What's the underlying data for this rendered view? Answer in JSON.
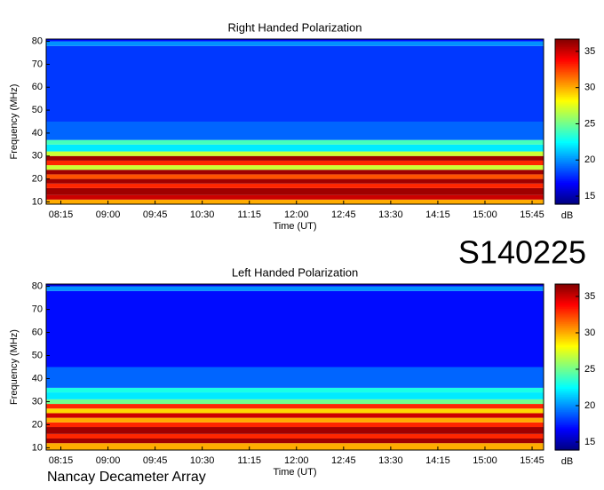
{
  "chart_data": [
    {
      "type": "heatmap",
      "title": "Right Handed Polarization",
      "xlabel": "Time (UT)",
      "ylabel": "Frequency (MHz)",
      "xlim": [
        481,
        956
      ],
      "xticks": [
        {
          "value": 495,
          "label": "08:15"
        },
        {
          "value": 540,
          "label": "09:00"
        },
        {
          "value": 585,
          "label": "09:45"
        },
        {
          "value": 630,
          "label": "10:30"
        },
        {
          "value": 675,
          "label": "11:15"
        },
        {
          "value": 720,
          "label": "12:00"
        },
        {
          "value": 765,
          "label": "12:45"
        },
        {
          "value": 810,
          "label": "13:30"
        },
        {
          "value": 855,
          "label": "14:15"
        },
        {
          "value": 900,
          "label": "15:00"
        },
        {
          "value": 945,
          "label": "15:45"
        }
      ],
      "ylim": [
        9,
        81
      ],
      "yticks": [
        10,
        20,
        30,
        40,
        50,
        60,
        70,
        80
      ],
      "y_bins": [
        9,
        11,
        13,
        16,
        18,
        20,
        22,
        24,
        26,
        28,
        30,
        32,
        35,
        37,
        45,
        78,
        80,
        81
      ],
      "values": [
        30,
        35,
        36,
        33,
        36,
        32,
        36,
        27,
        33,
        36,
        27,
        22,
        24,
        19,
        18,
        20,
        17
      ],
      "colorbar": {
        "lim": [
          13.9,
          36.7
        ],
        "ticks": [
          15,
          20,
          25,
          30,
          35
        ],
        "label": "dB"
      }
    },
    {
      "type": "heatmap",
      "title": "Left Handed Polarization",
      "xlabel": "Time (UT)",
      "ylabel": "Frequency (MHz)",
      "xlim": [
        481,
        956
      ],
      "xticks": [
        {
          "value": 495,
          "label": "08:15"
        },
        {
          "value": 540,
          "label": "09:00"
        },
        {
          "value": 585,
          "label": "09:45"
        },
        {
          "value": 630,
          "label": "10:30"
        },
        {
          "value": 675,
          "label": "11:15"
        },
        {
          "value": 720,
          "label": "12:00"
        },
        {
          "value": 765,
          "label": "12:45"
        },
        {
          "value": 810,
          "label": "13:30"
        },
        {
          "value": 855,
          "label": "14:15"
        },
        {
          "value": 900,
          "label": "15:00"
        },
        {
          "value": 945,
          "label": "15:45"
        }
      ],
      "ylim": [
        9,
        81
      ],
      "yticks": [
        10,
        20,
        30,
        40,
        50,
        60,
        70,
        80
      ],
      "y_bins": [
        9,
        12,
        14,
        16,
        19,
        21,
        23,
        25,
        27,
        29,
        31,
        34,
        36,
        45,
        78,
        80,
        81
      ],
      "values": [
        30,
        36,
        33,
        36,
        33,
        30,
        35,
        29,
        33,
        25,
        22,
        23,
        19,
        17,
        20,
        16
      ],
      "colorbar": {
        "lim": [
          13.9,
          36.7
        ],
        "ticks": [
          15,
          20,
          25,
          30,
          35
        ],
        "label": "dB"
      }
    }
  ],
  "stamp": "S140225",
  "footer": "Nancay Decameter Array"
}
